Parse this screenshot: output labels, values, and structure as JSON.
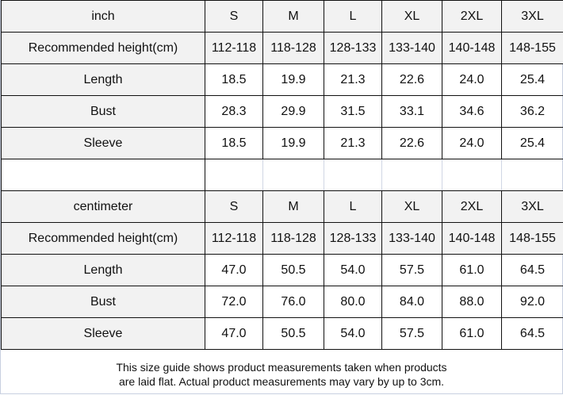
{
  "inch_table": {
    "header": [
      "inch",
      "S",
      "M",
      "L",
      "XL",
      "2XL",
      "3XL"
    ],
    "rows": [
      [
        "Recommended height(cm)",
        "112-118",
        "118-128",
        "128-133",
        "133-140",
        "140-148",
        "148-155"
      ],
      [
        "Length",
        "18.5",
        "19.9",
        "21.3",
        "22.6",
        "24.0",
        "25.4"
      ],
      [
        "Bust",
        "28.3",
        "29.9",
        "31.5",
        "33.1",
        "34.6",
        "36.2"
      ],
      [
        "Sleeve",
        "18.5",
        "19.9",
        "21.3",
        "22.6",
        "24.0",
        "25.4"
      ]
    ]
  },
  "cm_table": {
    "header": [
      "centimeter",
      "S",
      "M",
      "L",
      "XL",
      "2XL",
      "3XL"
    ],
    "rows": [
      [
        "Recommended height(cm)",
        "112-118",
        "118-128",
        "128-133",
        "133-140",
        "140-148",
        "148-155"
      ],
      [
        "Length",
        "47.0",
        "50.5",
        "54.0",
        "57.5",
        "61.0",
        "64.5"
      ],
      [
        "Bust",
        "72.0",
        "76.0",
        "80.0",
        "84.0",
        "88.0",
        "92.0"
      ],
      [
        "Sleeve",
        "47.0",
        "50.5",
        "54.0",
        "57.5",
        "61.0",
        "64.5"
      ]
    ]
  },
  "note": {
    "line1": "This size guide shows product measurements taken when products",
    "line2": "are laid flat. Actual product measurements may vary by up to 3cm."
  }
}
